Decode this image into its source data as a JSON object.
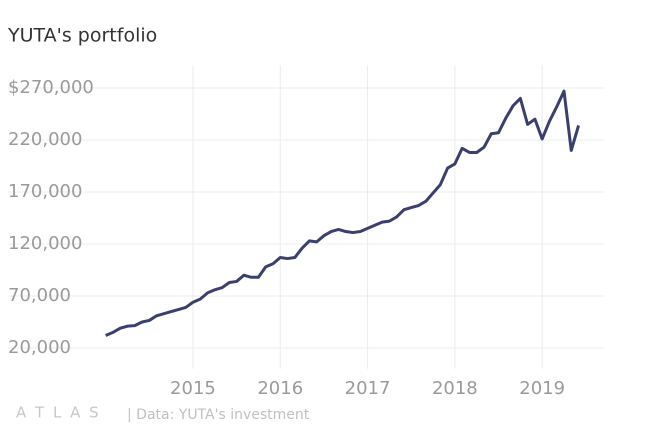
{
  "chart_data": {
    "type": "line",
    "title": "YUTA's portfolio",
    "x": [
      2014,
      2014.083,
      2014.167,
      2014.25,
      2014.333,
      2014.417,
      2014.5,
      2014.583,
      2014.667,
      2014.75,
      2014.833,
      2014.917,
      2015,
      2015.083,
      2015.167,
      2015.25,
      2015.333,
      2015.417,
      2015.5,
      2015.583,
      2015.667,
      2015.75,
      2015.833,
      2015.917,
      2016,
      2016.083,
      2016.167,
      2016.25,
      2016.333,
      2016.417,
      2016.5,
      2016.583,
      2016.667,
      2016.75,
      2016.833,
      2016.917,
      2017,
      2017.083,
      2017.167,
      2017.25,
      2017.333,
      2017.417,
      2017.5,
      2017.583,
      2017.667,
      2017.75,
      2017.833,
      2017.917,
      2018,
      2018.083,
      2018.167,
      2018.25,
      2018.333,
      2018.417,
      2018.5,
      2018.583,
      2018.667,
      2018.75,
      2018.833,
      2018.917,
      2019,
      2019.083,
      2019.167,
      2019.25,
      2019.333,
      2019.417
    ],
    "series": [
      {
        "name": "YUTA's portfolio",
        "color": "#3b3f6e",
        "values": [
          32000,
          35000,
          39000,
          41000,
          41500,
          45000,
          46500,
          51000,
          53000,
          55000,
          57000,
          59000,
          64000,
          67000,
          73000,
          76000,
          78000,
          83000,
          84000,
          90000,
          88000,
          88000,
          98000,
          101000,
          107000,
          106000,
          107000,
          116000,
          123000,
          122000,
          128000,
          132000,
          134000,
          132000,
          131000,
          132000,
          135000,
          138000,
          141000,
          142000,
          146000,
          153000,
          155000,
          157000,
          161000,
          169000,
          177000,
          193000,
          197000,
          212000,
          208000,
          208000,
          213000,
          226000,
          227000,
          241000,
          253000,
          260000,
          235000,
          240000,
          221000,
          238000,
          252000,
          267000,
          210000,
          234000
        ]
      }
    ],
    "xlim": [
      2013.855,
      2019.754
    ],
    "xticks": [
      2015,
      2016,
      2017,
      2018,
      2019
    ],
    "ylim": [
      0,
      290000
    ],
    "yticks": [
      {
        "value": 20000,
        "label": "20,000"
      },
      {
        "value": 70000,
        "label": "70,000"
      },
      {
        "value": 120000,
        "label": "120,000"
      },
      {
        "value": 170000,
        "label": "170,000"
      },
      {
        "value": 220000,
        "label": "220,000"
      },
      {
        "value": 270000,
        "label": "$270,000"
      }
    ],
    "grid": true,
    "logo": "A T L A S",
    "source": "| Data: YUTA's investment"
  }
}
